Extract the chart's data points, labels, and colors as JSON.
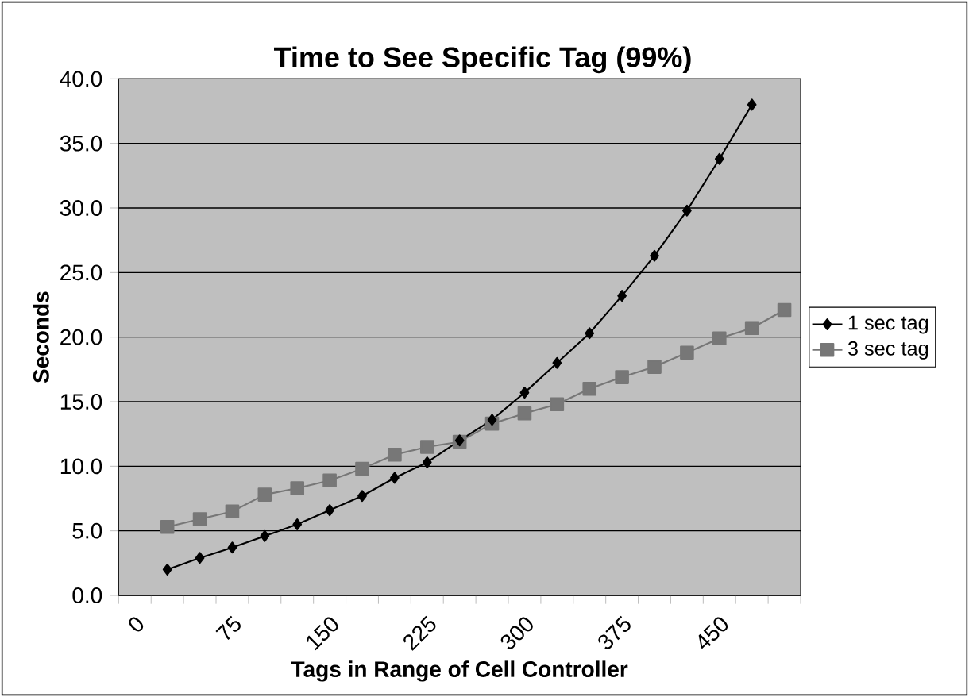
{
  "chart_data": {
    "type": "line",
    "title": "Time to See Specific Tag (99%)",
    "xlabel": "Tags in Range of Cell Controller",
    "ylabel": "Seconds",
    "categories": [
      "0",
      null,
      null,
      "75",
      null,
      null,
      "150",
      null,
      null,
      "225",
      null,
      null,
      "300",
      null,
      null,
      "375",
      null,
      null,
      "450",
      null,
      null
    ],
    "series": [
      {
        "name": "1 sec tag",
        "color": "#000000",
        "marker": "diamond",
        "values": [
          null,
          2.0,
          2.9,
          3.7,
          4.6,
          5.5,
          6.6,
          7.7,
          9.1,
          10.3,
          12.0,
          13.6,
          15.7,
          18.0,
          20.3,
          23.2,
          26.3,
          29.8,
          33.8,
          38.0,
          null
        ]
      },
      {
        "name": "3 sec tag",
        "color": "#777777",
        "marker": "square",
        "values": [
          null,
          5.3,
          5.9,
          6.5,
          7.8,
          8.3,
          8.9,
          9.8,
          10.9,
          11.5,
          11.9,
          13.3,
          14.1,
          14.8,
          16.0,
          16.9,
          17.7,
          18.8,
          19.9,
          20.7,
          22.1
        ]
      }
    ],
    "ylim": [
      0,
      40
    ],
    "yticks": [
      {
        "value": 0,
        "label": "0.0"
      },
      {
        "value": 5,
        "label": "5.0"
      },
      {
        "value": 10,
        "label": "10.0"
      },
      {
        "value": 15,
        "label": "15.0"
      },
      {
        "value": 20,
        "label": "20.0"
      },
      {
        "value": 25,
        "label": "25.0"
      },
      {
        "value": 30,
        "label": "30.0"
      },
      {
        "value": 35,
        "label": "35.0"
      },
      {
        "value": 40,
        "label": "40.0"
      }
    ],
    "grid": "y",
    "legend": "right"
  }
}
